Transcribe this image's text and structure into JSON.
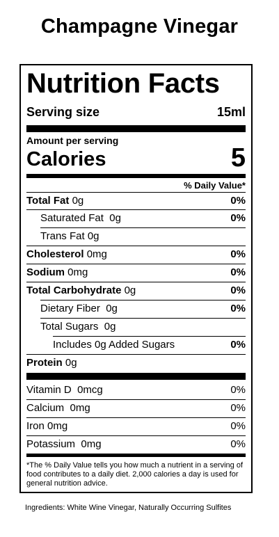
{
  "product": {
    "title": "Champagne Vinegar"
  },
  "label": {
    "title": "Nutrition Facts",
    "serving_size_label": "Serving size",
    "serving_size_value": "15ml",
    "amount_per_serving": "Amount per serving",
    "calories_label": "Calories",
    "calories_value": "5",
    "daily_value_header": "% Daily Value*",
    "nutrients": [
      {
        "name": "Total Fat",
        "amount": "0g",
        "dv": "0%"
      },
      {
        "name": "Saturated Fat",
        "amount": "0g",
        "dv": "0%"
      },
      {
        "name": "Trans Fat",
        "amount": "0g",
        "dv": ""
      },
      {
        "name": "Cholesterol",
        "amount": "0mg",
        "dv": "0%"
      },
      {
        "name": "Sodium",
        "amount": "0mg",
        "dv": "0%"
      },
      {
        "name": "Total Carbohydrate",
        "amount": "0g",
        "dv": "0%"
      },
      {
        "name": "Dietary Fiber",
        "amount": "0g",
        "dv": "0%"
      },
      {
        "name": "Total Sugars",
        "amount": "0g",
        "dv": ""
      },
      {
        "name": "Includes 0g Added Sugars",
        "amount": "",
        "dv": "0%"
      },
      {
        "name": "Protein",
        "amount": "0g",
        "dv": ""
      }
    ],
    "vitamins": [
      {
        "name": "Vitamin D",
        "amount": "0mcg",
        "dv": "0%"
      },
      {
        "name": "Calcium",
        "amount": "0mg",
        "dv": "0%"
      },
      {
        "name": "Iron",
        "amount": "0mg",
        "dv": "0%"
      },
      {
        "name": "Potassium",
        "amount": "0mg",
        "dv": "0%"
      }
    ],
    "footnote": "*The % Daily Value tells you how much a nutrient in a serving of food contributes to a daily diet. 2,000 calories a day is used for general nutrition advice."
  },
  "ingredients": "Ingredients: White Wine Vinegar, Naturally Occurring Sulfites"
}
